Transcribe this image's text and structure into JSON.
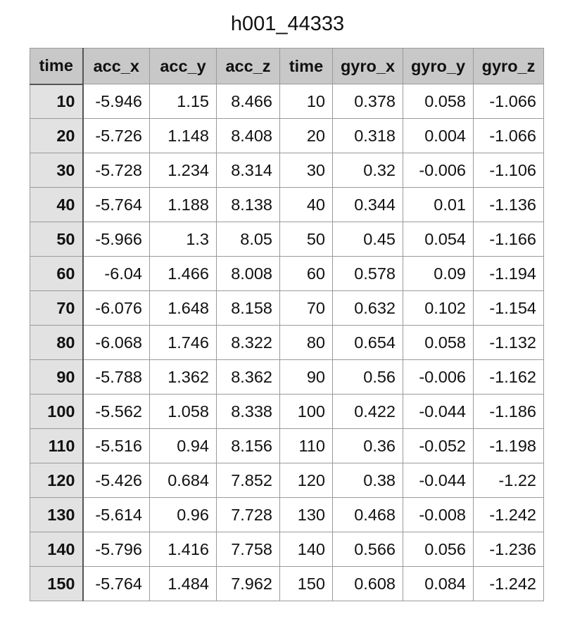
{
  "title": "h001_44333",
  "columns": [
    "time",
    "acc_x",
    "acc_y",
    "acc_z",
    "time",
    "gyro_x",
    "gyro_y",
    "gyro_z"
  ],
  "rows": [
    [
      "10",
      "-5.946",
      "1.15",
      "8.466",
      "10",
      "0.378",
      "0.058",
      "-1.066"
    ],
    [
      "20",
      "-5.726",
      "1.148",
      "8.408",
      "20",
      "0.318",
      "0.004",
      "-1.066"
    ],
    [
      "30",
      "-5.728",
      "1.234",
      "8.314",
      "30",
      "0.32",
      "-0.006",
      "-1.106"
    ],
    [
      "40",
      "-5.764",
      "1.188",
      "8.138",
      "40",
      "0.344",
      "0.01",
      "-1.136"
    ],
    [
      "50",
      "-5.966",
      "1.3",
      "8.05",
      "50",
      "0.45",
      "0.054",
      "-1.166"
    ],
    [
      "60",
      "-6.04",
      "1.466",
      "8.008",
      "60",
      "0.578",
      "0.09",
      "-1.194"
    ],
    [
      "70",
      "-6.076",
      "1.648",
      "8.158",
      "70",
      "0.632",
      "0.102",
      "-1.154"
    ],
    [
      "80",
      "-6.068",
      "1.746",
      "8.322",
      "80",
      "0.654",
      "0.058",
      "-1.132"
    ],
    [
      "90",
      "-5.788",
      "1.362",
      "8.362",
      "90",
      "0.56",
      "-0.006",
      "-1.162"
    ],
    [
      "100",
      "-5.562",
      "1.058",
      "8.338",
      "100",
      "0.422",
      "-0.044",
      "-1.186"
    ],
    [
      "110",
      "-5.516",
      "0.94",
      "8.156",
      "110",
      "0.36",
      "-0.052",
      "-1.198"
    ],
    [
      "120",
      "-5.426",
      "0.684",
      "7.852",
      "120",
      "0.38",
      "-0.044",
      "-1.22"
    ],
    [
      "130",
      "-5.614",
      "0.96",
      "7.728",
      "130",
      "0.468",
      "-0.008",
      "-1.242"
    ],
    [
      "140",
      "-5.796",
      "1.416",
      "7.758",
      "140",
      "0.566",
      "0.056",
      "-1.236"
    ],
    [
      "150",
      "-5.764",
      "1.484",
      "7.962",
      "150",
      "0.608",
      "0.084",
      "-1.242"
    ]
  ]
}
